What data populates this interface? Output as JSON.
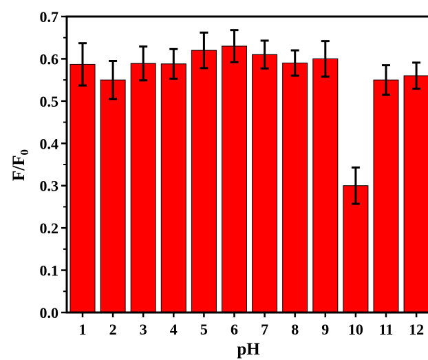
{
  "chart_data": {
    "type": "bar",
    "title": "",
    "xlabel": "pH",
    "ylabel": {
      "main": "F/F",
      "subscript": "0"
    },
    "categories": [
      "1",
      "2",
      "3",
      "4",
      "5",
      "6",
      "7",
      "8",
      "9",
      "10",
      "11",
      "12"
    ],
    "values": [
      0.587,
      0.55,
      0.589,
      0.588,
      0.62,
      0.63,
      0.61,
      0.59,
      0.6,
      0.3,
      0.55,
      0.56
    ],
    "errors": [
      0.05,
      0.045,
      0.04,
      0.035,
      0.042,
      0.038,
      0.033,
      0.03,
      0.042,
      0.043,
      0.035,
      0.031
    ],
    "ylim": [
      0,
      0.7
    ],
    "yticks": [
      "0.0",
      "0.1",
      "0.2",
      "0.3",
      "0.4",
      "0.5",
      "0.6",
      "0.7"
    ],
    "bar_color": "#ff0000",
    "grid": false,
    "legend": "none"
  }
}
